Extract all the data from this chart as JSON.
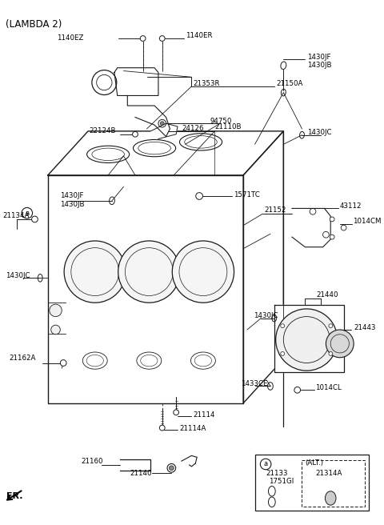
{
  "title": "(LAMBDA 2)",
  "bg_color": "#ffffff",
  "line_color": "#1a1a1a",
  "text_color": "#000000",
  "figsize": [
    4.8,
    6.56
  ],
  "dpi": 100,
  "labels": {
    "top_left": "(LAMBDA 2)",
    "fr_label": "FR.",
    "part_1140EZ": "1140EZ",
    "part_1140ER": "1140ER",
    "part_21353R": "21353R",
    "part_21150A": "21150A",
    "part_94750": "94750",
    "part_22124B": "22124B",
    "part_24126": "24126",
    "part_21110B": "21110B",
    "part_1430JF_top": "1430JF",
    "part_1430JB_top": "1430JB",
    "part_1430JC_top": "1430JC",
    "part_1430JF_left": "1430JF",
    "part_1430JB_left": "1430JB",
    "part_1430JC_left": "1430JC",
    "part_1430JC_right": "1430JC",
    "part_21134A": "21134A",
    "part_1571TC": "1571TC",
    "part_21152": "21152",
    "part_43112": "43112",
    "part_1014CM": "1014CM",
    "part_21162A": "21162A",
    "part_21440": "21440",
    "part_21443": "21443",
    "part_1433CE": "1433CE",
    "part_1014CL": "1014CL",
    "part_21114": "21114",
    "part_21114A": "21114A",
    "part_21160": "21160",
    "part_21140": "21140",
    "part_21133": "21133",
    "part_1751GI": "1751GI",
    "part_alt": "(ALT.)",
    "part_21314A": "21314A",
    "circle_a": "a"
  }
}
